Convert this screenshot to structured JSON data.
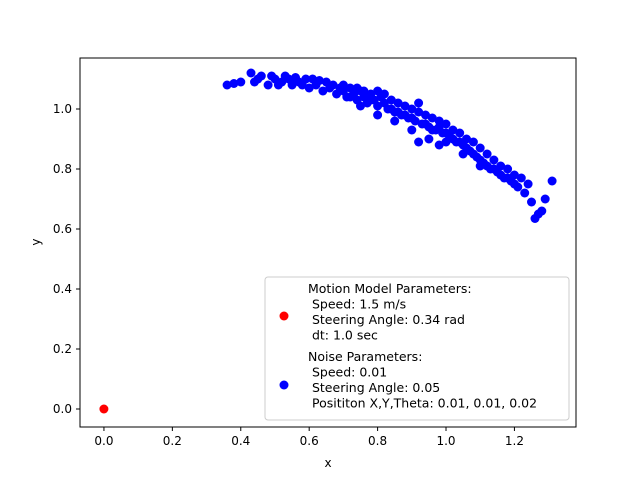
{
  "chart_data": {
    "type": "scatter",
    "xlabel": "x",
    "ylabel": "y",
    "xlim": [
      -0.07,
      1.38
    ],
    "ylim": [
      -0.06,
      1.17
    ],
    "xticks": [
      "0.0",
      "0.2",
      "0.4",
      "0.6",
      "0.8",
      "1.0",
      "1.2"
    ],
    "yticks": [
      "0.0",
      "0.2",
      "0.4",
      "0.6",
      "0.8",
      "1.0"
    ],
    "legend_position": "lower-right",
    "series": [
      {
        "name": "Motion Model Parameters:\n Speed: 1.5 m/s\n Steering Angle: 0.34 rad\n dt: 1.0 sec",
        "color": "#ff0000",
        "points": [
          [
            0.0,
            0.0
          ]
        ]
      },
      {
        "name": "Noise Parameters:\n Speed: 0.01\n Steering Angle: 0.05\n Posititon X,Y,Theta: 0.01, 0.01, 0.02",
        "color": "#0000ff",
        "points": [
          [
            0.36,
            1.08
          ],
          [
            0.38,
            1.085
          ],
          [
            0.4,
            1.09
          ],
          [
            0.43,
            1.12
          ],
          [
            0.44,
            1.09
          ],
          [
            0.45,
            1.1
          ],
          [
            0.46,
            1.11
          ],
          [
            0.48,
            1.08
          ],
          [
            0.49,
            1.11
          ],
          [
            0.5,
            1.1
          ],
          [
            0.51,
            1.08
          ],
          [
            0.52,
            1.09
          ],
          [
            0.53,
            1.11
          ],
          [
            0.54,
            1.1
          ],
          [
            0.55,
            1.08
          ],
          [
            0.56,
            1.105
          ],
          [
            0.57,
            1.09
          ],
          [
            0.58,
            1.08
          ],
          [
            0.59,
            1.1
          ],
          [
            0.6,
            1.07
          ],
          [
            0.61,
            1.1
          ],
          [
            0.62,
            1.08
          ],
          [
            0.63,
            1.095
          ],
          [
            0.64,
            1.06
          ],
          [
            0.65,
            1.09
          ],
          [
            0.66,
            1.07
          ],
          [
            0.67,
            1.08
          ],
          [
            0.68,
            1.05
          ],
          [
            0.69,
            1.07
          ],
          [
            0.7,
            1.06
          ],
          [
            0.71,
            1.04
          ],
          [
            0.72,
            1.07
          ],
          [
            0.73,
            1.05
          ],
          [
            0.74,
            1.03
          ],
          [
            0.75,
            1.06
          ],
          [
            0.76,
            1.04
          ],
          [
            0.77,
            1.02
          ],
          [
            0.78,
            1.05
          ],
          [
            0.79,
            1.03
          ],
          [
            0.8,
            1.01
          ],
          [
            0.81,
            1.04
          ],
          [
            0.82,
            1.02
          ],
          [
            0.83,
            1.0
          ],
          [
            0.84,
            1.03
          ],
          [
            0.85,
            0.99
          ],
          [
            0.86,
            1.02
          ],
          [
            0.87,
            0.98
          ],
          [
            0.88,
            1.01
          ],
          [
            0.89,
            0.97
          ],
          [
            0.9,
            1.0
          ],
          [
            0.91,
            0.96
          ],
          [
            0.92,
            0.99
          ],
          [
            0.93,
            0.95
          ],
          [
            0.94,
            0.98
          ],
          [
            0.95,
            0.94
          ],
          [
            0.96,
            0.97
          ],
          [
            0.97,
            0.93
          ],
          [
            0.98,
            0.96
          ],
          [
            0.99,
            0.92
          ],
          [
            1.0,
            0.95
          ],
          [
            1.01,
            0.91
          ],
          [
            1.02,
            0.93
          ],
          [
            1.03,
            0.89
          ],
          [
            1.04,
            0.92
          ],
          [
            1.05,
            0.88
          ],
          [
            1.06,
            0.9
          ],
          [
            1.07,
            0.86
          ],
          [
            1.08,
            0.89
          ],
          [
            1.09,
            0.84
          ],
          [
            1.1,
            0.87
          ],
          [
            1.11,
            0.82
          ],
          [
            1.12,
            0.85
          ],
          [
            1.13,
            0.8
          ],
          [
            1.14,
            0.83
          ],
          [
            1.15,
            0.79
          ],
          [
            1.16,
            0.81
          ],
          [
            1.17,
            0.77
          ],
          [
            1.18,
            0.8
          ],
          [
            1.19,
            0.76
          ],
          [
            1.2,
            0.78
          ],
          [
            1.21,
            0.74
          ],
          [
            1.22,
            0.77
          ],
          [
            1.23,
            0.72
          ],
          [
            1.24,
            0.75
          ],
          [
            1.25,
            0.69
          ],
          [
            1.26,
            0.635
          ],
          [
            1.27,
            0.65
          ],
          [
            1.28,
            0.66
          ],
          [
            1.29,
            0.7
          ],
          [
            1.31,
            0.76
          ],
          [
            0.7,
            1.08
          ],
          [
            0.72,
            1.04
          ],
          [
            0.74,
            1.07
          ],
          [
            0.76,
            1.06
          ],
          [
            0.78,
            1.03
          ],
          [
            0.8,
            1.06
          ],
          [
            0.82,
            1.05
          ],
          [
            0.84,
            1.0
          ],
          [
            0.86,
            0.99
          ],
          [
            0.88,
            0.98
          ],
          [
            0.9,
            0.97
          ],
          [
            0.92,
            1.02
          ],
          [
            0.94,
            0.95
          ],
          [
            0.96,
            0.93
          ],
          [
            0.98,
            0.94
          ],
          [
            1.0,
            0.92
          ],
          [
            1.02,
            0.9
          ],
          [
            1.04,
            0.89
          ],
          [
            1.06,
            0.87
          ],
          [
            1.08,
            0.85
          ],
          [
            1.1,
            0.83
          ],
          [
            1.12,
            0.81
          ],
          [
            1.14,
            0.8
          ],
          [
            1.16,
            0.78
          ],
          [
            1.18,
            0.77
          ],
          [
            1.2,
            0.75
          ],
          [
            0.9,
            0.93
          ],
          [
            0.95,
            0.9
          ],
          [
            1.0,
            0.89
          ],
          [
            0.85,
            0.96
          ],
          [
            0.8,
            0.98
          ],
          [
            0.75,
            1.01
          ],
          [
            0.92,
            0.89
          ],
          [
            0.98,
            0.88
          ],
          [
            1.05,
            0.85
          ],
          [
            1.1,
            0.81
          ]
        ]
      }
    ]
  }
}
